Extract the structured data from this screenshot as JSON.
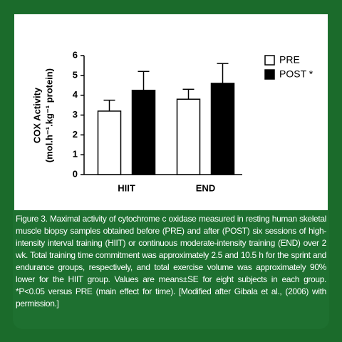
{
  "chart_data": {
    "type": "bar",
    "y_label": [
      "COX Activity",
      "(mol.h⁻¹.kg⁻¹ protein)"
    ],
    "categories": [
      "HIIT",
      "END"
    ],
    "series": [
      {
        "name": "PRE",
        "color": "#ffffff",
        "values": [
          3.2,
          3.8
        ],
        "errors": [
          0.55,
          0.5
        ]
      },
      {
        "name": "POST *",
        "color": "#000000",
        "values": [
          4.25,
          4.6
        ],
        "errors": [
          0.95,
          1.0
        ]
      }
    ],
    "ylim": [
      0,
      6
    ],
    "yticks": [
      0,
      1,
      2,
      3,
      4,
      5,
      6
    ],
    "grid": false,
    "legend": "top-right"
  },
  "caption": "Figure 3. Maximal activity of cytochrome c oxidase measured in resting human skeletal muscle biopsy samples obtained before (PRE) and after (POST) six sessions of high-intensity interval training (HIIT) or continuous moderate-intensity training (END) over 2 wk. Total training time commitment was approximately 2.5 and 10.5 h for the sprint and endurance groups, respectively, and total exercise volume was approximately 90% lower for the HIIT group. Values are means±SE for eight subjects in each group. *P<0.05 versus PRE (main effect for time). [Modified after Gibala et al., (2006) with permission.]"
}
